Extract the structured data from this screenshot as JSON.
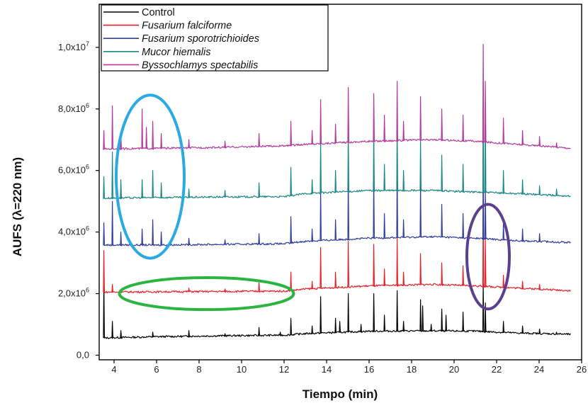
{
  "chart_data": {
    "type": "line",
    "xlabel": "Tiempo (min)",
    "ylabel": "AUFS (λ=220 nm)",
    "xlim": [
      3.3,
      26
    ],
    "ylim": [
      -150000,
      11400000
    ],
    "x_ticks": [
      4,
      6,
      8,
      10,
      12,
      14,
      16,
      18,
      20,
      22,
      24,
      26
    ],
    "y_ticks": [
      {
        "value": 0,
        "mant": "0,0",
        "exp": ""
      },
      {
        "value": 2000000,
        "mant": "2,0x10",
        "exp": "6"
      },
      {
        "value": 4000000,
        "mant": "4,0x10",
        "exp": "6"
      },
      {
        "value": 6000000,
        "mant": "6,0x10",
        "exp": "6"
      },
      {
        "value": 8000000,
        "mant": "8,0x10",
        "exp": "6"
      },
      {
        "value": 10000000,
        "mant": "1,0x10",
        "exp": "7"
      }
    ],
    "legend": {
      "placement": "top-left"
    },
    "series": [
      {
        "name": "Control",
        "italic": false,
        "color": "#000000",
        "baseline": [
          [
            3.5,
            560000
          ],
          [
            6,
            600000
          ],
          [
            9,
            630000
          ],
          [
            12,
            650000
          ],
          [
            13,
            700000
          ],
          [
            16,
            780000
          ],
          [
            19,
            790000
          ],
          [
            21,
            780000
          ],
          [
            23,
            720000
          ],
          [
            26,
            670000
          ]
        ],
        "peaks": [
          [
            3.5,
            2400000
          ],
          [
            3.9,
            1100000
          ],
          [
            4.3,
            800000
          ],
          [
            5.8,
            750000
          ],
          [
            7.5,
            800000
          ],
          [
            9.2,
            700000
          ],
          [
            10.8,
            900000
          ],
          [
            11.8,
            750000
          ],
          [
            12.3,
            1200000
          ],
          [
            13.3,
            950000
          ],
          [
            13.7,
            1900000
          ],
          [
            14.4,
            1200000
          ],
          [
            14.6,
            1100000
          ],
          [
            15.0,
            2000000
          ],
          [
            15.6,
            1000000
          ],
          [
            16.2,
            2000000
          ],
          [
            16.7,
            1300000
          ],
          [
            17.3,
            2100000
          ],
          [
            17.6,
            1100000
          ],
          [
            18.4,
            1800000
          ],
          [
            18.5,
            1600000
          ],
          [
            18.9,
            1000000
          ],
          [
            19.4,
            1500000
          ],
          [
            19.6,
            1300000
          ],
          [
            20.4,
            1400000
          ],
          [
            21.35,
            2300000
          ],
          [
            21.45,
            1700000
          ],
          [
            22.3,
            1100000
          ],
          [
            23.2,
            950000
          ],
          [
            24.0,
            850000
          ],
          [
            24.8,
            750000
          ]
        ]
      },
      {
        "name": "Fusarium falciforme",
        "italic": true,
        "color": "#e8202a",
        "baseline": [
          [
            3.5,
            2050000
          ],
          [
            6,
            2060000
          ],
          [
            9,
            2070000
          ],
          [
            12,
            2080000
          ],
          [
            13,
            2150000
          ],
          [
            16,
            2250000
          ],
          [
            19,
            2300000
          ],
          [
            21,
            2250000
          ],
          [
            23,
            2180000
          ],
          [
            26,
            2080000
          ]
        ],
        "peaks": [
          [
            3.5,
            3400000
          ],
          [
            3.9,
            2300000
          ],
          [
            7.5,
            2180000
          ],
          [
            9.2,
            2150000
          ],
          [
            10.8,
            2350000
          ],
          [
            12.3,
            2700000
          ],
          [
            13.3,
            2400000
          ],
          [
            13.7,
            3500000
          ],
          [
            14.4,
            2700000
          ],
          [
            15.0,
            3700000
          ],
          [
            16.2,
            3600000
          ],
          [
            16.7,
            2800000
          ],
          [
            17.3,
            3800000
          ],
          [
            17.6,
            2700000
          ],
          [
            18.4,
            3300000
          ],
          [
            19.4,
            3000000
          ],
          [
            20.4,
            2900000
          ],
          [
            21.35,
            4800000
          ],
          [
            21.45,
            3800000
          ],
          [
            22.3,
            2600000
          ],
          [
            23.2,
            2400000
          ],
          [
            24.0,
            2300000
          ]
        ]
      },
      {
        "name": "Fusarium sporotrichioides",
        "italic": true,
        "color": "#2e3d9e",
        "baseline": [
          [
            3.5,
            3580000
          ],
          [
            6,
            3580000
          ],
          [
            9,
            3600000
          ],
          [
            12,
            3620000
          ],
          [
            13,
            3700000
          ],
          [
            16,
            3800000
          ],
          [
            19,
            3850000
          ],
          [
            21,
            3800000
          ],
          [
            23,
            3720000
          ],
          [
            26,
            3650000
          ]
        ],
        "peaks": [
          [
            3.5,
            4300000
          ],
          [
            3.9,
            5000000
          ],
          [
            4.3,
            4000000
          ],
          [
            5.3,
            4100000
          ],
          [
            5.8,
            4400000
          ],
          [
            6.2,
            4000000
          ],
          [
            7.5,
            3800000
          ],
          [
            9.2,
            3750000
          ],
          [
            10.8,
            3950000
          ],
          [
            12.3,
            4500000
          ],
          [
            13.3,
            4100000
          ],
          [
            13.7,
            5400000
          ],
          [
            14.4,
            4400000
          ],
          [
            15.0,
            5800000
          ],
          [
            16.2,
            5700000
          ],
          [
            16.7,
            4600000
          ],
          [
            17.3,
            6100000
          ],
          [
            17.6,
            4400000
          ],
          [
            18.4,
            5500000
          ],
          [
            19.4,
            4900000
          ],
          [
            20.4,
            4600000
          ],
          [
            21.35,
            6200000
          ],
          [
            21.45,
            5400000
          ],
          [
            22.3,
            4300000
          ],
          [
            23.2,
            4100000
          ],
          [
            24.0,
            3950000
          ]
        ]
      },
      {
        "name": "Mucor hiemalis",
        "italic": true,
        "color": "#1a8686",
        "baseline": [
          [
            3.5,
            5100000
          ],
          [
            6,
            5120000
          ],
          [
            9,
            5140000
          ],
          [
            12,
            5150000
          ],
          [
            13,
            5250000
          ],
          [
            16,
            5350000
          ],
          [
            19,
            5350000
          ],
          [
            21,
            5300000
          ],
          [
            23,
            5250000
          ],
          [
            26,
            5150000
          ]
        ],
        "peaks": [
          [
            3.5,
            5800000
          ],
          [
            3.9,
            6600000
          ],
          [
            4.3,
            5700000
          ],
          [
            5.3,
            5700000
          ],
          [
            5.8,
            6000000
          ],
          [
            6.2,
            5600000
          ],
          [
            7.5,
            5400000
          ],
          [
            9.2,
            5350000
          ],
          [
            10.8,
            5600000
          ],
          [
            12.3,
            6100000
          ],
          [
            13.3,
            5700000
          ],
          [
            13.7,
            7000000
          ],
          [
            14.4,
            6000000
          ],
          [
            15.0,
            7400000
          ],
          [
            16.2,
            7300000
          ],
          [
            16.7,
            6200000
          ],
          [
            17.3,
            7600000
          ],
          [
            17.6,
            6000000
          ],
          [
            18.4,
            7000000
          ],
          [
            19.4,
            6500000
          ],
          [
            20.4,
            6200000
          ],
          [
            21.35,
            8800000
          ],
          [
            21.45,
            7800000
          ],
          [
            22.3,
            6000000
          ],
          [
            23.2,
            5700000
          ],
          [
            24.0,
            5500000
          ],
          [
            24.8,
            5400000
          ]
        ]
      },
      {
        "name": "Byssochlamys spectabilis",
        "italic": true,
        "color": "#b33a9e",
        "baseline": [
          [
            3.5,
            6700000
          ],
          [
            6,
            6720000
          ],
          [
            9,
            6750000
          ],
          [
            12,
            6800000
          ],
          [
            13,
            6850000
          ],
          [
            16,
            6950000
          ],
          [
            19,
            7000000
          ],
          [
            21,
            6950000
          ],
          [
            23,
            6850000
          ],
          [
            26,
            6700000
          ]
        ],
        "peaks": [
          [
            3.5,
            7300000
          ],
          [
            3.9,
            8100000
          ],
          [
            4.3,
            7200000
          ],
          [
            5.3,
            8000000
          ],
          [
            5.5,
            7400000
          ],
          [
            5.8,
            7600000
          ],
          [
            6.2,
            7200000
          ],
          [
            7.5,
            7000000
          ],
          [
            9.2,
            6950000
          ],
          [
            10.8,
            7200000
          ],
          [
            12.3,
            7600000
          ],
          [
            13.3,
            7300000
          ],
          [
            13.7,
            8300000
          ],
          [
            14.4,
            7500000
          ],
          [
            15.0,
            8700000
          ],
          [
            16.2,
            8500000
          ],
          [
            16.7,
            7800000
          ],
          [
            17.3,
            8900000
          ],
          [
            17.6,
            7600000
          ],
          [
            18.4,
            8400000
          ],
          [
            19.4,
            8000000
          ],
          [
            20.4,
            7800000
          ],
          [
            21.35,
            10100000
          ],
          [
            21.45,
            8900000
          ],
          [
            22.3,
            7700000
          ],
          [
            23.2,
            7300000
          ],
          [
            24.0,
            7100000
          ],
          [
            24.8,
            6900000
          ]
        ]
      }
    ],
    "highlights": [
      {
        "name": "highlight-ellipse-blue",
        "color": "#2aa9e2",
        "cx": 5.7,
        "cy": 5800000,
        "rx": 1.6,
        "ry": 2650000
      },
      {
        "name": "highlight-ellipse-green",
        "color": "#2bb540",
        "cx": 8.35,
        "cy": 2000000,
        "rx": 4.1,
        "ry": 520000
      },
      {
        "name": "highlight-ellipse-purple",
        "color": "#5c3f8e",
        "cx": 21.6,
        "cy": 3200000,
        "rx": 1.0,
        "ry": 1700000
      }
    ]
  }
}
